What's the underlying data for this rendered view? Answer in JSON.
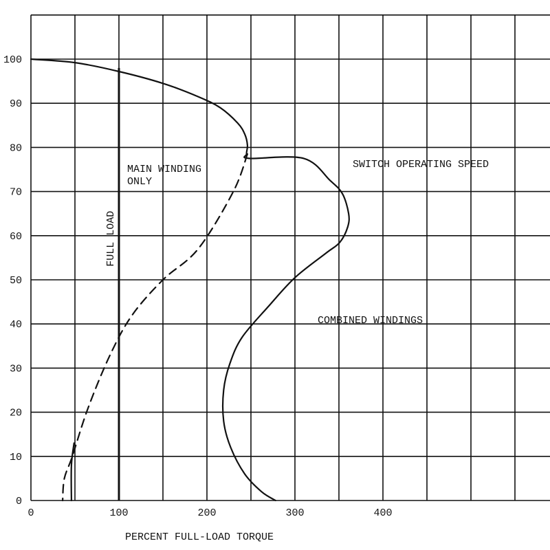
{
  "chart_data": {
    "type": "line",
    "title": "",
    "xlabel": "PERCENT FULL-LOAD TORQUE",
    "ylabel": "",
    "xlim": [
      0,
      590
    ],
    "ylim": [
      0,
      110
    ],
    "x_ticks": [
      0,
      100,
      200,
      300,
      400
    ],
    "y_ticks": [
      0,
      10,
      20,
      30,
      40,
      50,
      60,
      70,
      80,
      90,
      100
    ],
    "grid": true,
    "full_load": {
      "label": "FULL LOAD",
      "x": 100
    },
    "annotations": {
      "main_winding_line1": "MAIN WINDING",
      "main_winding_line2": "ONLY",
      "switch_speed": "SWITCH OPERATING SPEED",
      "combined": "COMBINED WINDINGS"
    },
    "series": [
      {
        "style": "solid",
        "points": [
          [
            0,
            100
          ],
          [
            50,
            99.2
          ],
          [
            100,
            97.2
          ],
          [
            150,
            94.5
          ],
          [
            190,
            91.5
          ],
          [
            215,
            89
          ],
          [
            235,
            85.5
          ],
          [
            243,
            83
          ],
          [
            246,
            80.5
          ],
          [
            245,
            78.5
          ],
          [
            248,
            77.5
          ],
          [
            310,
            77.5
          ],
          [
            340,
            72.5
          ],
          [
            354,
            69.5
          ],
          [
            361,
            65
          ],
          [
            360,
            62
          ],
          [
            351,
            58.5
          ],
          [
            335,
            56
          ],
          [
            300,
            50.5
          ],
          [
            270,
            44
          ],
          [
            240,
            37
          ],
          [
            226,
            31
          ],
          [
            219,
            25
          ],
          [
            219,
            18
          ],
          [
            227,
            12
          ],
          [
            243,
            6
          ],
          [
            262,
            2
          ],
          [
            278,
            0
          ]
        ]
      },
      {
        "style": "dashed",
        "points": [
          [
            246,
            78.5
          ],
          [
            230,
            70
          ],
          [
            190,
            57
          ],
          [
            150,
            50
          ],
          [
            115,
            42
          ],
          [
            90,
            33
          ],
          [
            65,
            21
          ],
          [
            47,
            10
          ],
          [
            38,
            5
          ],
          [
            36,
            0
          ]
        ]
      },
      {
        "style": "solid",
        "points": [
          [
            46,
            0
          ],
          [
            46,
            8
          ],
          [
            49,
            13
          ]
        ]
      }
    ]
  }
}
